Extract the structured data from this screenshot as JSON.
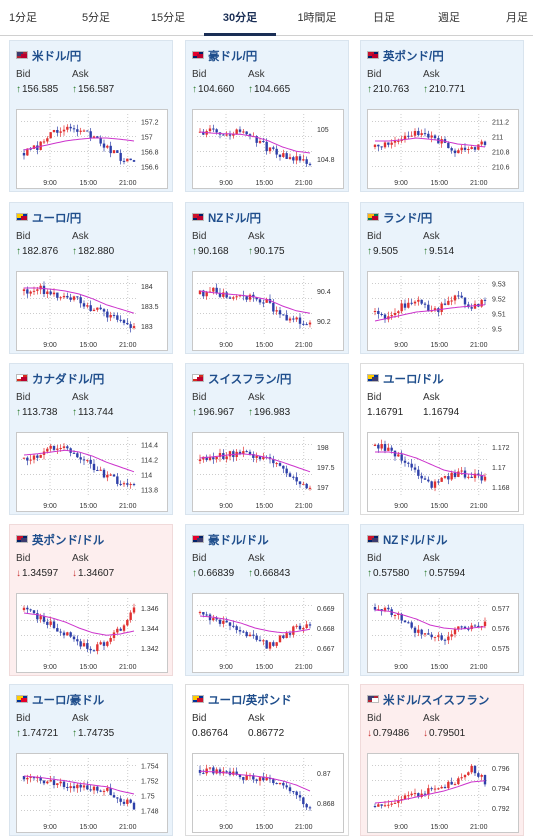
{
  "tabs": [
    {
      "label": "1分足",
      "active": false
    },
    {
      "label": "5分足",
      "active": false
    },
    {
      "label": "15分足",
      "active": false
    },
    {
      "label": "30分足",
      "active": true
    },
    {
      "label": "1時間足",
      "active": false
    },
    {
      "label": "日足",
      "active": false
    },
    {
      "label": "週足",
      "active": false
    },
    {
      "label": "月足",
      "active": false
    }
  ],
  "bid_label": "Bid",
  "ask_label": "Ask",
  "x_ticks": [
    "9:00",
    "15:00",
    "21:00"
  ],
  "colors": {
    "up_candle": "#2d3fa8",
    "down_candle": "#e03030",
    "ma": "#cc33cc",
    "ma2": "#33a0e0",
    "up_arrow": "#2a7a2a",
    "down_arrow": "#c83030"
  },
  "cards": [
    {
      "name": "米ドル/円",
      "flag": "us-jp-flag",
      "bid": "156.585",
      "ask": "156.587",
      "dir": "up",
      "style": "up",
      "yticks": [
        "157.2",
        "157",
        "156.8",
        "156.6"
      ],
      "trend": [
        0.65,
        0.55,
        0.35,
        0.2,
        0.25,
        0.4,
        0.55,
        0.75,
        0.85
      ],
      "ma": [
        0.6,
        0.55,
        0.5,
        0.45,
        0.42,
        0.4,
        0.4,
        0.42,
        0.45
      ]
    },
    {
      "name": "豪ドル/円",
      "flag": "au-jp-flag",
      "bid": "104.660",
      "ask": "104.665",
      "dir": "up",
      "style": "up",
      "yticks": [
        "105",
        "104.8"
      ],
      "trend": [
        0.3,
        0.25,
        0.35,
        0.3,
        0.4,
        0.6,
        0.7,
        0.75,
        0.85
      ],
      "ma": [
        0.3,
        0.32,
        0.33,
        0.34,
        0.38,
        0.45,
        0.55,
        0.62,
        0.65
      ]
    },
    {
      "name": "英ポンド/円",
      "flag": "gb-jp-flag",
      "bid": "210.763",
      "ask": "210.771",
      "dir": "up",
      "style": "up",
      "yticks": [
        "211.2",
        "211",
        "210.8",
        "210.6"
      ],
      "trend": [
        0.55,
        0.5,
        0.45,
        0.3,
        0.35,
        0.5,
        0.65,
        0.55,
        0.5
      ],
      "ma": [
        0.45,
        0.45,
        0.43,
        0.4,
        0.42,
        0.45,
        0.5,
        0.52,
        0.55
      ]
    },
    {
      "name": "ユーロ/円",
      "flag": "eu-jp-flag",
      "bid": "182.876",
      "ask": "182.880",
      "dir": "up",
      "style": "up",
      "yticks": [
        "184",
        "183.5",
        "183"
      ],
      "trend": [
        0.25,
        0.2,
        0.3,
        0.35,
        0.4,
        0.55,
        0.65,
        0.75,
        0.85
      ],
      "ma": [
        0.2,
        0.2,
        0.22,
        0.25,
        0.3,
        0.38,
        0.48,
        0.55,
        0.62
      ]
    },
    {
      "name": "NZドル/円",
      "flag": "nz-jp-flag",
      "bid": "90.168",
      "ask": "90.175",
      "dir": "up",
      "style": "up",
      "yticks": [
        "90.4",
        "90.2"
      ],
      "trend": [
        0.3,
        0.25,
        0.35,
        0.3,
        0.4,
        0.45,
        0.7,
        0.75,
        0.8
      ],
      "ma": [
        0.25,
        0.28,
        0.3,
        0.32,
        0.35,
        0.4,
        0.5,
        0.58,
        0.62
      ]
    },
    {
      "name": "ランド/円",
      "flag": "za-jp-flag",
      "bid": "9.505",
      "ask": "9.514",
      "dir": "up",
      "style": "up",
      "yticks": [
        "9.53",
        "9.52",
        "9.51",
        "9.5"
      ],
      "trend": [
        0.6,
        0.7,
        0.5,
        0.4,
        0.6,
        0.5,
        0.35,
        0.55,
        0.4
      ],
      "ma": [
        0.75,
        0.7,
        0.65,
        0.6,
        0.58,
        0.55,
        0.52,
        0.5,
        0.48
      ]
    },
    {
      "name": "カナダドル/円",
      "flag": "ca-jp-flag",
      "bid": "113.738",
      "ask": "113.744",
      "dir": "up",
      "style": "up",
      "yticks": [
        "114.4",
        "114.2",
        "114",
        "113.8"
      ],
      "trend": [
        0.35,
        0.3,
        0.2,
        0.15,
        0.3,
        0.5,
        0.65,
        0.75,
        0.85
      ],
      "ma": [
        0.3,
        0.28,
        0.25,
        0.22,
        0.25,
        0.32,
        0.42,
        0.5,
        0.58
      ]
    },
    {
      "name": "スイスフラン/円",
      "flag": "ch-jp-flag",
      "bid": "196.967",
      "ask": "196.983",
      "dir": "up",
      "style": "up",
      "yticks": [
        "198",
        "197.5",
        "197"
      ],
      "trend": [
        0.4,
        0.35,
        0.3,
        0.25,
        0.3,
        0.4,
        0.55,
        0.75,
        0.85
      ],
      "ma": [
        0.35,
        0.33,
        0.3,
        0.28,
        0.3,
        0.35,
        0.42,
        0.5,
        0.58
      ]
    },
    {
      "name": "ユーロ/ドル",
      "flag": "eu-us-flag",
      "bid": "1.16791",
      "ask": "1.16794",
      "dir": "none",
      "style": "neutral",
      "yticks": [
        "1.172",
        "1.17",
        "1.168"
      ],
      "trend": [
        0.15,
        0.2,
        0.35,
        0.55,
        0.8,
        0.7,
        0.6,
        0.65,
        0.7
      ],
      "ma": [
        0.25,
        0.25,
        0.28,
        0.35,
        0.45,
        0.55,
        0.6,
        0.62,
        0.65
      ]
    },
    {
      "name": "英ポンド/ドル",
      "flag": "gb-us-flag",
      "bid": "1.34597",
      "ask": "1.34607",
      "dir": "down",
      "style": "down",
      "yticks": [
        "1.346",
        "1.344",
        "1.342"
      ],
      "trend": [
        0.2,
        0.3,
        0.45,
        0.6,
        0.75,
        0.85,
        0.75,
        0.5,
        0.2
      ],
      "ma": [
        0.25,
        0.28,
        0.33,
        0.4,
        0.5,
        0.58,
        0.62,
        0.6,
        0.55
      ]
    },
    {
      "name": "豪ドル/ドル",
      "flag": "au-us-flag",
      "bid": "0.66839",
      "ask": "0.66843",
      "dir": "up",
      "style": "up",
      "yticks": [
        "0.669",
        "0.668",
        "0.667"
      ],
      "trend": [
        0.25,
        0.35,
        0.45,
        0.6,
        0.7,
        0.8,
        0.65,
        0.5,
        0.45
      ],
      "ma": [
        0.3,
        0.32,
        0.36,
        0.42,
        0.5,
        0.55,
        0.58,
        0.56,
        0.52
      ]
    },
    {
      "name": "NZドル/ドル",
      "flag": "nz-us-flag",
      "bid": "0.57580",
      "ask": "0.57594",
      "dir": "up",
      "style": "up",
      "yticks": [
        "0.577",
        "0.576",
        "0.575"
      ],
      "trend": [
        0.15,
        0.2,
        0.35,
        0.55,
        0.6,
        0.7,
        0.5,
        0.45,
        0.4
      ],
      "ma": [
        0.2,
        0.22,
        0.28,
        0.35,
        0.45,
        0.5,
        0.52,
        0.5,
        0.48
      ]
    },
    {
      "name": "ユーロ/豪ドル",
      "flag": "eu-au-flag",
      "bid": "1.74721",
      "ask": "1.74735",
      "dir": "up",
      "style": "up",
      "yticks": [
        "1.754",
        "1.752",
        "1.75",
        "1.748"
      ],
      "trend": [
        0.3,
        0.35,
        0.4,
        0.45,
        0.5,
        0.5,
        0.55,
        0.7,
        0.8
      ],
      "ma": [
        0.3,
        0.32,
        0.35,
        0.38,
        0.42,
        0.45,
        0.48,
        0.55,
        0.6
      ]
    },
    {
      "name": "ユーロ/英ポンド",
      "flag": "eu-gb-flag",
      "bid": "0.86764",
      "ask": "0.86772",
      "dir": "none",
      "style": "neutral",
      "yticks": [
        "0.87",
        "0.868"
      ],
      "trend": [
        0.2,
        0.22,
        0.25,
        0.3,
        0.35,
        0.4,
        0.45,
        0.6,
        0.85
      ],
      "ma": [
        0.22,
        0.23,
        0.25,
        0.28,
        0.3,
        0.33,
        0.38,
        0.45,
        0.55
      ]
    },
    {
      "name": "米ドル/スイスフラン",
      "flag": "us-ch-flag",
      "bid": "0.79486",
      "ask": "0.79501",
      "dir": "down",
      "style": "down",
      "yticks": [
        "0.796",
        "0.794",
        "0.792"
      ],
      "trend": [
        0.8,
        0.75,
        0.7,
        0.6,
        0.55,
        0.5,
        0.35,
        0.15,
        0.4
      ],
      "ma": [
        0.75,
        0.73,
        0.7,
        0.65,
        0.6,
        0.55,
        0.48,
        0.4,
        0.38
      ]
    }
  ]
}
